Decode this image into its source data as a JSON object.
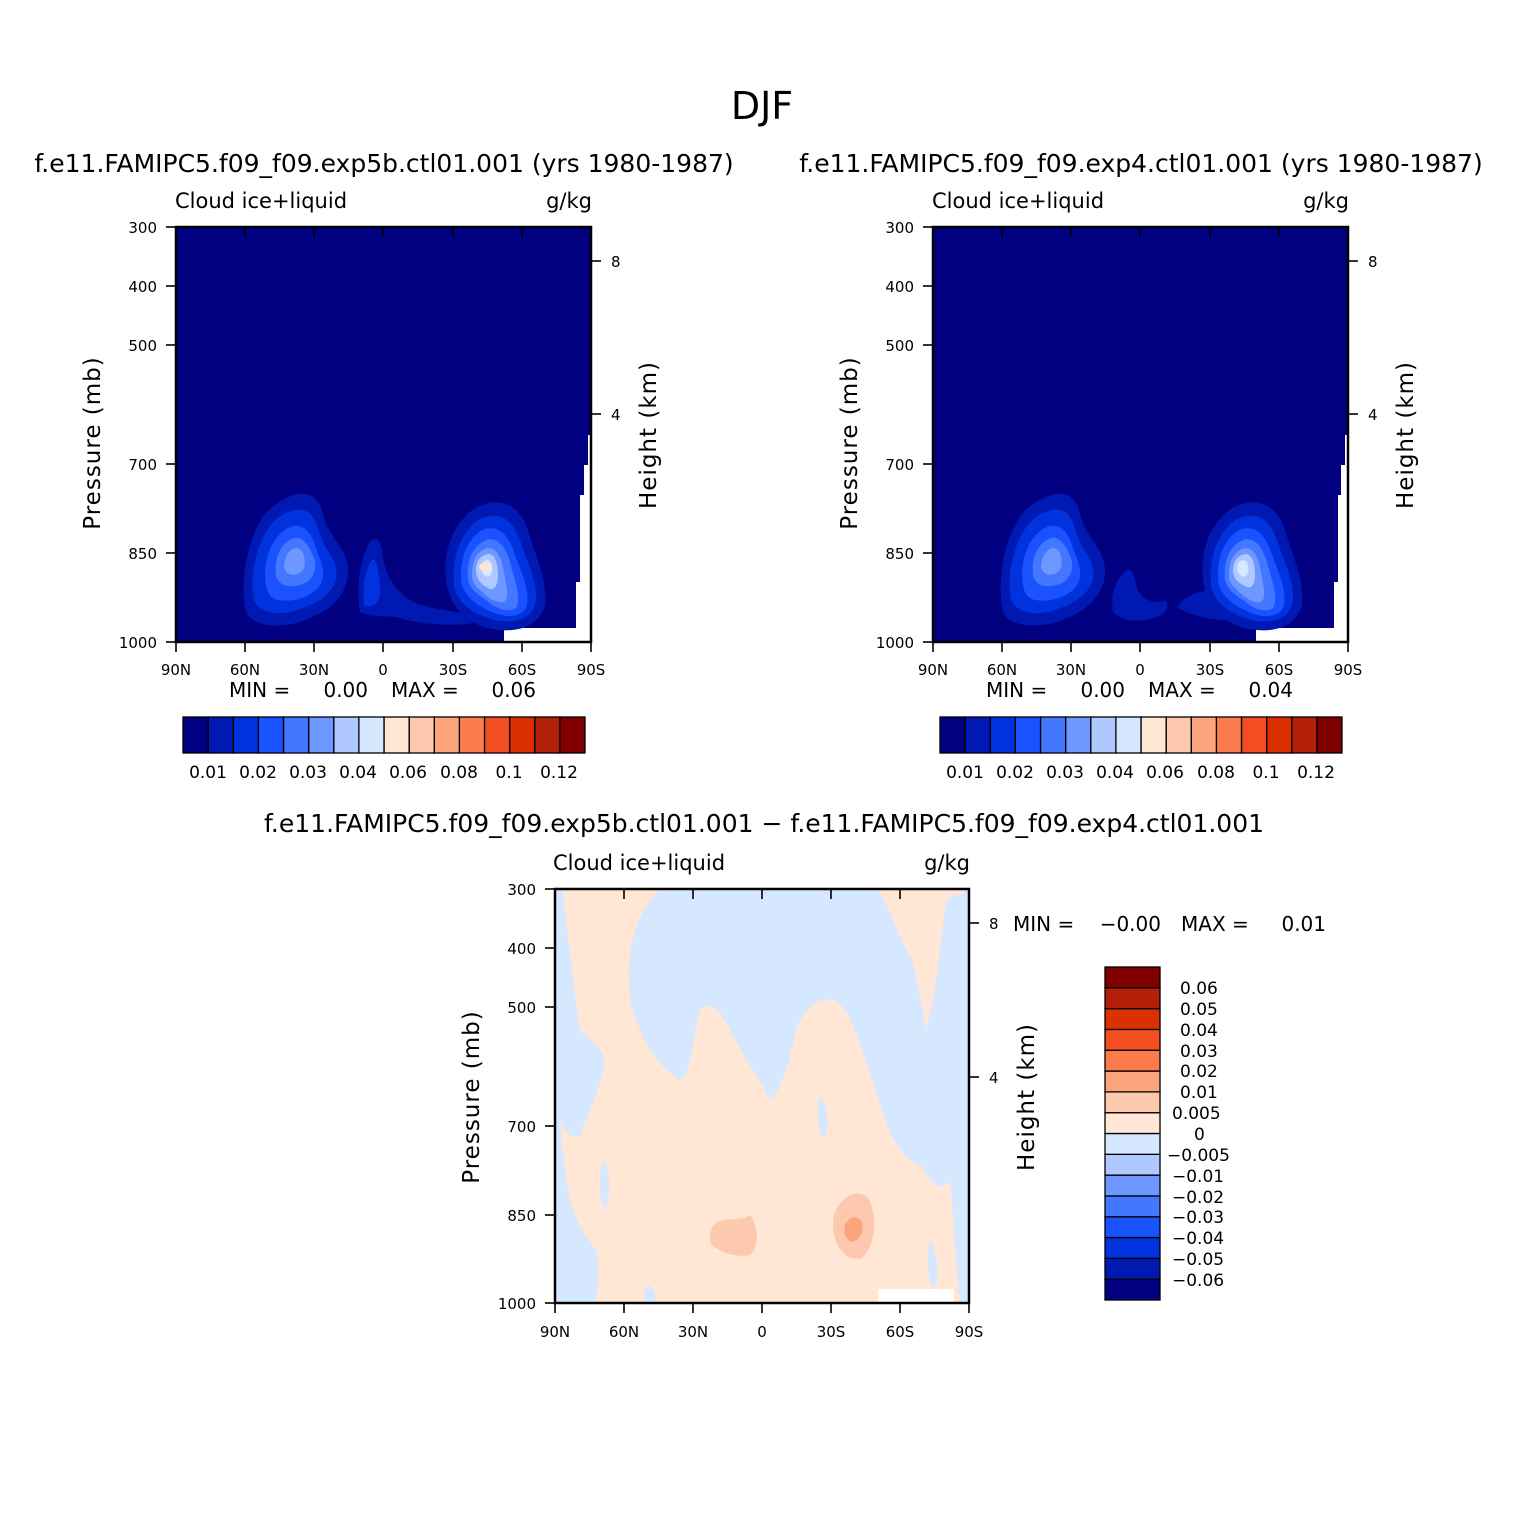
{
  "main_title": "DJF",
  "colors": {
    "abs_levels": [
      "#000080",
      "#0019b3",
      "#0033dd",
      "#1a52ff",
      "#4477ff",
      "#6e98ff",
      "#afc8ff",
      "#d6e8ff",
      "#ffe6d5",
      "#fcc8ae",
      "#fca47c",
      "#fb7b4c",
      "#f34e22",
      "#dd3000",
      "#b3200a",
      "#800000"
    ],
    "diff_levels": [
      "#800000",
      "#b3200a",
      "#dd3000",
      "#f34e22",
      "#fb7b4c",
      "#fca47c",
      "#fcc8ae",
      "#ffe6d5",
      "#d6e8ff",
      "#afc8ff",
      "#6e98ff",
      "#4477ff",
      "#1a52ff",
      "#0033dd",
      "#0019b3",
      "#000080"
    ]
  },
  "chart_data": [
    {
      "type": "heatmap",
      "title": "f.e11.FAMIPC5.f09_f09.exp5b.ctl01.001 (yrs 1980-1987)",
      "left_label": "Cloud ice+liquid",
      "right_label": "g/kg",
      "ylabel": "Pressure (mb)",
      "ylabel_right": "Height (km)",
      "x_ticks": [
        "90N",
        "60N",
        "30N",
        "0",
        "30S",
        "60S",
        "90S"
      ],
      "y_ticks": [
        "300",
        "400",
        "500",
        "700",
        "850",
        "1000"
      ],
      "y_ticks_right": [
        "8",
        "4"
      ],
      "min_label": "MIN =",
      "min_value": "0.00",
      "max_label": "MAX =",
      "max_value": "0.06",
      "colorbar_labels": [
        "0.01",
        "0.02",
        "0.03",
        "0.04",
        "0.06",
        "0.08",
        "0.1",
        "0.12"
      ]
    },
    {
      "type": "heatmap",
      "title": "f.e11.FAMIPC5.f09_f09.exp4.ctl01.001 (yrs 1980-1987)",
      "left_label": "Cloud ice+liquid",
      "right_label": "g/kg",
      "ylabel": "Pressure (mb)",
      "ylabel_right": "Height (km)",
      "x_ticks": [
        "90N",
        "60N",
        "30N",
        "0",
        "30S",
        "60S",
        "90S"
      ],
      "y_ticks": [
        "300",
        "400",
        "500",
        "700",
        "850",
        "1000"
      ],
      "y_ticks_right": [
        "8",
        "4"
      ],
      "min_label": "MIN =",
      "min_value": "0.00",
      "max_label": "MAX =",
      "max_value": "0.04",
      "colorbar_labels": [
        "0.01",
        "0.02",
        "0.03",
        "0.04",
        "0.06",
        "0.08",
        "0.1",
        "0.12"
      ]
    },
    {
      "type": "heatmap",
      "title": "f.e11.FAMIPC5.f09_f09.exp5b.ctl01.001 − f.e11.FAMIPC5.f09_f09.exp4.ctl01.001",
      "left_label": "Cloud ice+liquid",
      "right_label": "g/kg",
      "ylabel": "Pressure (mb)",
      "ylabel_right": "Height (km)",
      "x_ticks": [
        "90N",
        "60N",
        "30N",
        "0",
        "30S",
        "60S",
        "90S"
      ],
      "y_ticks": [
        "300",
        "400",
        "500",
        "700",
        "850",
        "1000"
      ],
      "y_ticks_right": [
        "8",
        "4"
      ],
      "min_label": "MIN =",
      "min_value": "−0.00",
      "max_label": "MAX =",
      "max_value": "0.01",
      "colorbar_labels": [
        "0.06",
        "0.05",
        "0.04",
        "0.03",
        "0.02",
        "0.01",
        "0.005",
        "0",
        "−0.005",
        "−0.01",
        "−0.02",
        "−0.03",
        "−0.04",
        "−0.05",
        "−0.06"
      ]
    }
  ]
}
